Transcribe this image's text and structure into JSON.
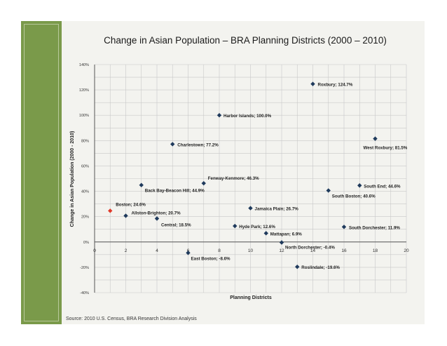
{
  "slide": {
    "title": "Change in Asian Population – BRA Planning Districts (2000 – 2010)",
    "source": "Source: 2010 U.S. Census, BRA Research Division Analysis"
  },
  "colors": {
    "sidebar": "#7a9a4a",
    "point": "#1f3a5c",
    "highlight": "#e03a2a",
    "grid": "#c8c8c8",
    "axis": "#555555"
  },
  "chart_data": {
    "type": "scatter",
    "title": "Change in Asian Population – BRA Planning Districts (2000 – 2010)",
    "xlabel": "Planning Districts",
    "ylabel": "Change in Asian Population (2000 - 2010)",
    "xlim": [
      0,
      20
    ],
    "ylim": [
      -40,
      140
    ],
    "x_ticks": [
      0,
      2,
      4,
      6,
      8,
      10,
      12,
      14,
      16,
      18,
      20
    ],
    "x_tick_labels": [
      "0",
      "2",
      "4",
      "6",
      "8",
      "10",
      "12",
      "14",
      "16",
      "18",
      "20"
    ],
    "y_ticks": [
      -40,
      -20,
      0,
      20,
      40,
      60,
      80,
      100,
      120,
      140
    ],
    "y_tick_labels": [
      "-40%",
      "-20%",
      "0%",
      "20%",
      "40%",
      "60%",
      "80%",
      "100%",
      "120%",
      "140%"
    ],
    "grid": true,
    "legend": "none",
    "points": [
      {
        "x": 1,
        "y": 24.6,
        "label": "Boston; 24.6%",
        "highlight": true
      },
      {
        "x": 2,
        "y": 20.7,
        "label": "Allston-Brighton; 20.7%"
      },
      {
        "x": 3,
        "y": 44.9,
        "label": "Back Bay-Beacon Hill; 44.9%"
      },
      {
        "x": 4,
        "y": 18.5,
        "label": "Central; 18.5%"
      },
      {
        "x": 5,
        "y": 77.2,
        "label": "Charlestown; 77.2%"
      },
      {
        "x": 6,
        "y": -8.6,
        "label": "East Boston; -8.6%"
      },
      {
        "x": 7,
        "y": 46.3,
        "label": "Fenway-Kenmore; 46.3%"
      },
      {
        "x": 8,
        "y": 100.0,
        "label": "Harbor Islands; 100.0%"
      },
      {
        "x": 9,
        "y": 12.6,
        "label": "Hyde Park; 12.6%"
      },
      {
        "x": 10,
        "y": 26.7,
        "label": "Jamaica Plain; 26.7%"
      },
      {
        "x": 11,
        "y": 6.9,
        "label": "Mattapan; 6.9%"
      },
      {
        "x": 12,
        "y": -0.4,
        "label": "North Dorchester; -0.4%"
      },
      {
        "x": 13,
        "y": -19.6,
        "label": "Roslindale; -19.6%"
      },
      {
        "x": 14,
        "y": 124.7,
        "label": "Roxbury; 124.7%"
      },
      {
        "x": 15,
        "y": 40.6,
        "label": "South Boston; 40.6%"
      },
      {
        "x": 16,
        "y": 11.9,
        "label": "South Dorchester; 11.9%"
      },
      {
        "x": 17,
        "y": 44.6,
        "label": "South End; 44.6%"
      },
      {
        "x": 18,
        "y": 81.5,
        "label": "West Roxbury; 81.5%"
      }
    ]
  }
}
